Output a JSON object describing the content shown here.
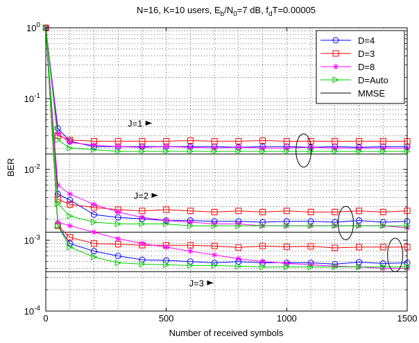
{
  "chart_data": {
    "type": "line",
    "title": "N=16, K=10 users, E_b/N_0=7 dB, f_dT=0.00005",
    "title_parts": [
      "N=16, K=10 users, E",
      "b",
      "/N",
      "0",
      "=7 dB, f",
      "d",
      "T=0.00005"
    ],
    "xlabel": "Number of received symbols",
    "ylabel": "BER",
    "xlim": [
      0,
      1500
    ],
    "ylim": [
      0.0001,
      1
    ],
    "yscale": "log",
    "grid": true,
    "legend_position": "top-right",
    "x_ticks": [
      0,
      500,
      1000,
      1500
    ],
    "y_ticks": [
      {
        "value": 1,
        "base": "10",
        "exp": "0"
      },
      {
        "value": 0.1,
        "base": "10",
        "exp": "-1"
      },
      {
        "value": 0.01,
        "base": "10",
        "exp": "-2"
      },
      {
        "value": 0.001,
        "base": "10",
        "exp": "-3"
      },
      {
        "value": 0.0001,
        "base": "10",
        "exp": "-4"
      }
    ],
    "x": [
      0,
      50,
      100,
      200,
      300,
      400,
      500,
      600,
      700,
      800,
      900,
      1000,
      1100,
      1200,
      1300,
      1400,
      1500
    ],
    "series": [
      {
        "name": "D=4",
        "color": "#0000ff",
        "marker": "circle",
        "groups": [
          [
            1,
            0.038,
            0.025,
            0.021,
            0.021,
            0.021,
            0.021,
            0.021,
            0.021,
            0.0205,
            0.021,
            0.021,
            0.0205,
            0.021,
            0.0205,
            0.021,
            0.021
          ],
          [
            1,
            0.0045,
            0.0037,
            0.0023,
            0.0021,
            0.002,
            0.0019,
            0.0019,
            0.00185,
            0.00185,
            0.0018,
            0.00185,
            0.00185,
            0.0018,
            0.0019,
            0.0018,
            0.00185
          ],
          [
            1,
            0.0016,
            0.0009,
            0.0007,
            0.0006,
            0.00053,
            0.00052,
            0.0005,
            0.00048,
            0.0005,
            0.00048,
            0.00048,
            0.00048,
            0.00046,
            0.00049,
            0.00047,
            0.00048
          ]
        ]
      },
      {
        "name": "D=3",
        "color": "#ff0000",
        "marker": "square",
        "groups": [
          [
            1,
            0.03,
            0.026,
            0.025,
            0.025,
            0.025,
            0.025,
            0.0255,
            0.025,
            0.025,
            0.0255,
            0.025,
            0.025,
            0.025,
            0.025,
            0.025,
            0.025
          ],
          [
            1,
            0.0038,
            0.0032,
            0.0029,
            0.0027,
            0.0026,
            0.0027,
            0.0026,
            0.0025,
            0.0026,
            0.0025,
            0.0026,
            0.0025,
            0.0025,
            0.0026,
            0.0025,
            0.0026
          ],
          [
            1,
            0.0016,
            0.0011,
            0.0009,
            0.00088,
            0.00085,
            0.00085,
            0.00085,
            0.00083,
            0.00079,
            0.00083,
            0.00081,
            0.00082,
            0.00078,
            0.0008,
            0.0008,
            0.0008
          ]
        ]
      },
      {
        "name": "D=8",
        "color": "#ff00ff",
        "marker": "star",
        "groups": [
          [
            1,
            0.032,
            0.024,
            0.022,
            0.021,
            0.0205,
            0.021,
            0.0205,
            0.02,
            0.0205,
            0.02,
            0.02,
            0.0205,
            0.02,
            0.02,
            0.02,
            0.02
          ],
          [
            1,
            0.006,
            0.0045,
            0.0032,
            0.0025,
            0.0021,
            0.0019,
            0.0018,
            0.0017,
            0.0017,
            0.0016,
            0.0016,
            0.0016,
            0.0016,
            0.0016,
            0.0016,
            0.0015
          ],
          [
            1,
            0.0018,
            0.0016,
            0.0013,
            0.00105,
            0.0009,
            0.0008,
            0.0007,
            0.00062,
            0.00055,
            0.0005,
            0.00047,
            0.00045,
            0.00043,
            0.00042,
            0.0004,
            0.0004
          ]
        ]
      },
      {
        "name": "D=Auto",
        "color": "#00cc00",
        "marker": "triangle-right",
        "groups": [
          [
            1,
            0.026,
            0.02,
            0.019,
            0.018,
            0.018,
            0.018,
            0.018,
            0.018,
            0.018,
            0.018,
            0.018,
            0.018,
            0.018,
            0.018,
            0.018,
            0.018
          ],
          [
            1,
            0.0033,
            0.0022,
            0.0018,
            0.0017,
            0.0017,
            0.0017,
            0.0016,
            0.0016,
            0.0016,
            0.0016,
            0.0016,
            0.0016,
            0.0016,
            0.0016,
            0.0016,
            0.0016
          ],
          [
            1,
            0.0016,
            0.0008,
            0.00058,
            0.00048,
            0.00046,
            0.00045,
            0.00044,
            0.00044,
            0.00043,
            0.00042,
            0.00042,
            0.00042,
            0.00042,
            0.00042,
            0.00042,
            0.00042
          ]
        ]
      }
    ],
    "reference_lines": [
      {
        "name": "MMSE",
        "color": "#000000",
        "y": 0.0165
      },
      {
        "name": "MMSE",
        "color": "#000000",
        "y": 0.0013
      },
      {
        "name": "MMSE",
        "color": "#000000",
        "y": 0.00036
      }
    ],
    "annotations": [
      {
        "text": "J=1",
        "x": 340,
        "y": 0.045,
        "arrow_to": [
          440,
          0.045
        ],
        "ellipse": {
          "cx": 1070,
          "cy": 0.0185
        }
      },
      {
        "text": "J=2",
        "x": 365,
        "y": 0.0043,
        "arrow_to": [
          465,
          0.0043
        ],
        "ellipse": {
          "cx": 1245,
          "cy": 0.00175
        }
      },
      {
        "text": "J=3",
        "x": 595,
        "y": 0.00025,
        "arrow_to": [
          695,
          0.00025
        ],
        "ellipse": {
          "cx": 1450,
          "cy": 0.00062
        }
      }
    ]
  }
}
